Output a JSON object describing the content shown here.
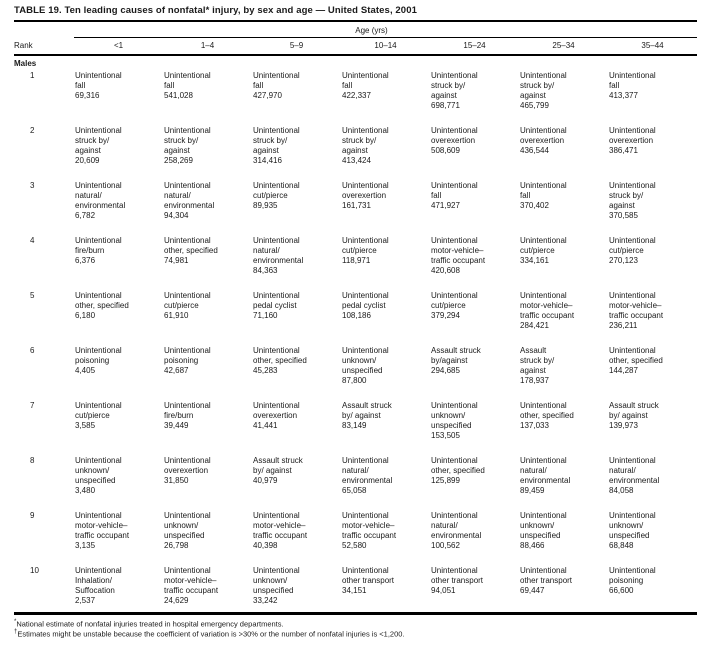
{
  "title": "TABLE 19. Ten leading causes of nonfatal* injury, by sex and age — United States, 2001",
  "table": {
    "age_group_label": "Age (yrs)",
    "rank_header": "Rank",
    "age_columns": [
      "<1",
      "1–4",
      "5–9",
      "10–14",
      "15–24",
      "25–34",
      "35–44"
    ],
    "section_label": "Males",
    "rows": [
      {
        "rank": "1",
        "cells": [
          [
            "Unintentional",
            "fall",
            "69,316"
          ],
          [
            "Unintentional",
            "fall",
            "541,028"
          ],
          [
            "Unintentional",
            "fall",
            "427,970"
          ],
          [
            "Unintentional",
            "fall",
            "422,337"
          ],
          [
            "Unintentional",
            "struck by/",
            "against",
            "698,771"
          ],
          [
            "Unintentional",
            "struck by/",
            "against",
            "465,799"
          ],
          [
            "Unintentional",
            "fall",
            "413,377"
          ]
        ]
      },
      {
        "rank": "2",
        "cells": [
          [
            "Unintentional",
            "struck by/",
            "against",
            "20,609"
          ],
          [
            "Unintentional",
            "struck by/",
            "against",
            "258,269"
          ],
          [
            "Unintentional",
            "struck by/",
            "against",
            "314,416"
          ],
          [
            "Unintentional",
            "struck by/",
            "against",
            "413,424"
          ],
          [
            "Unintentional",
            "overexertion",
            "508,609"
          ],
          [
            "Unintentional",
            "overexertion",
            "436,544"
          ],
          [
            "Unintentional",
            "overexertion",
            "386,471"
          ]
        ]
      },
      {
        "rank": "3",
        "cells": [
          [
            "Unintentional",
            "natural/",
            "environmental",
            "6,782"
          ],
          [
            "Unintentional",
            "natural/",
            "environmental",
            "94,304"
          ],
          [
            "Unintentional",
            "cut/pierce",
            "89,935"
          ],
          [
            "Unintentional",
            "overexertion",
            "161,731"
          ],
          [
            "Unintentional",
            "fall",
            "471,927"
          ],
          [
            "Unintentional",
            "fall",
            "370,402"
          ],
          [
            "Unintentional",
            "struck by/",
            "against",
            "370,585"
          ]
        ]
      },
      {
        "rank": "4",
        "cells": [
          [
            "Unintentional",
            "fire/burn",
            "6,376"
          ],
          [
            "Unintentional",
            "other, specified",
            "74,981"
          ],
          [
            "Unintentional",
            "natural/",
            "environmental",
            "84,363"
          ],
          [
            "Unintentional",
            "cut/pierce",
            "118,971"
          ],
          [
            "Unintentional",
            "motor-vehicle–",
            "traffic occupant",
            "420,608"
          ],
          [
            "Unintentional",
            "cut/pierce",
            "334,161"
          ],
          [
            "Unintentional",
            "cut/pierce",
            "270,123"
          ]
        ]
      },
      {
        "rank": "5",
        "cells": [
          [
            "Unintentional",
            "other, specified",
            "6,180"
          ],
          [
            "Unintentional",
            "cut/pierce",
            "61,910"
          ],
          [
            "Unintentional",
            "pedal cyclist",
            "71,160"
          ],
          [
            "Unintentional",
            "pedal cyclist",
            "108,186"
          ],
          [
            "Unintentional",
            "cut/pierce",
            "379,294"
          ],
          [
            "Unintentional",
            "motor-vehicle–",
            "traffic occupant",
            "284,421"
          ],
          [
            "Unintentional",
            "motor-vehicle–",
            "traffic occupant",
            "236,211"
          ]
        ]
      },
      {
        "rank": "6",
        "cells": [
          [
            "Unintentional",
            "poisoning",
            "4,405"
          ],
          [
            "Unintentional",
            "poisoning",
            "42,687"
          ],
          [
            "Unintentional",
            "other, specified",
            "45,283"
          ],
          [
            "Unintentional",
            "unknown/",
            "unspecified",
            "87,800"
          ],
          [
            "Assault struck",
            "by/against",
            "294,685"
          ],
          [
            "Assault",
            "struck by/",
            "against",
            "178,937"
          ],
          [
            "Unintentional",
            "other, specified",
            "144,287"
          ]
        ]
      },
      {
        "rank": "7",
        "cells": [
          [
            "Unintentional",
            "cut/pierce",
            "3,585"
          ],
          [
            "Unintentional",
            "fire/burn",
            "39,449"
          ],
          [
            "Unintentional",
            "overexertion",
            "41,441"
          ],
          [
            "Assault struck",
            "by/ against",
            "83,149"
          ],
          [
            "Unintentional",
            "unknown/",
            "unspecified",
            "153,505"
          ],
          [
            "Unintentional",
            "other, specified",
            "137,033"
          ],
          [
            "Assault struck",
            "by/ against",
            "139,973"
          ]
        ]
      },
      {
        "rank": "8",
        "cells": [
          [
            "Unintentional",
            "unknown/",
            "unspecified",
            "3,480"
          ],
          [
            "Unintentional",
            "overexertion",
            "31,850"
          ],
          [
            "Assault struck",
            "by/ against",
            "40,979"
          ],
          [
            "Unintentional",
            "natural/",
            "environmental",
            "65,058"
          ],
          [
            "Unintentional",
            "other, specified",
            "125,899"
          ],
          [
            "Unintentional",
            "natural/",
            "environmental",
            "89,459"
          ],
          [
            "Unintentional",
            "natural/",
            "environmental",
            "84,058"
          ]
        ]
      },
      {
        "rank": "9",
        "cells": [
          [
            "Unintentional",
            "motor-vehicle–",
            "traffic occupant",
            "3,135"
          ],
          [
            "Unintentional",
            "unknown/",
            "unspecified",
            "26,798"
          ],
          [
            "Unintentional",
            "motor-vehicle–",
            "traffic occupant",
            "40,398"
          ],
          [
            "Unintentional",
            "motor-vehicle–",
            "traffic occupant",
            "52,580"
          ],
          [
            "Unintentional",
            "natural/",
            "environmental",
            "100,562"
          ],
          [
            "Unintentional",
            "unknown/",
            "unspecified",
            "88,466"
          ],
          [
            "Unintentional",
            "unknown/",
            "unspecified",
            "68,848"
          ]
        ]
      },
      {
        "rank": "10",
        "cells": [
          [
            "Unintentional",
            "Inhalation/",
            "Suffocation",
            "2,537"
          ],
          [
            "Unintentional",
            "motor-vehicle–",
            "traffic occupant",
            "24,629"
          ],
          [
            "Unintentional",
            "unknown/",
            "unspecified",
            "33,242"
          ],
          [
            "Unintentional",
            "other transport",
            "34,151"
          ],
          [
            "Unintentional",
            "other transport",
            "94,051"
          ],
          [
            "Unintentional",
            "other transport",
            "69,447"
          ],
          [
            "Unintentional",
            "poisoning",
            "66,600"
          ]
        ]
      }
    ]
  },
  "footnotes": [
    {
      "symbol": "*",
      "text": "National estimate of nonfatal injuries treated in hospital emergency departments."
    },
    {
      "symbol": "†",
      "text": "Estimates might be unstable because the coefficient of variation is >30% or the number of nonfatal injuries is <1,200."
    }
  ]
}
